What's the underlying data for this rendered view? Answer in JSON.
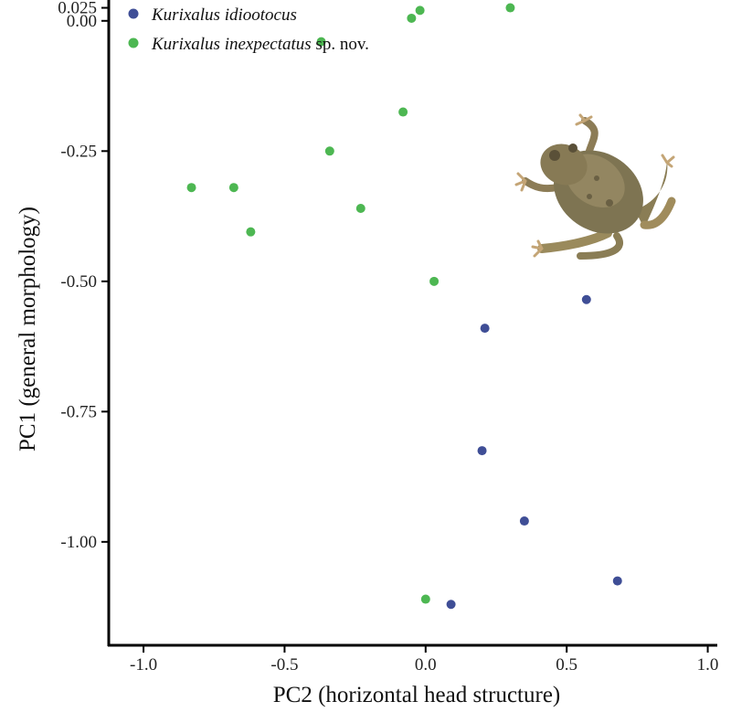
{
  "chart_data": {
    "type": "scatter",
    "title": "",
    "xlabel": "PC2 (horizontal head structure)",
    "ylabel": "PC1 (general morphology)",
    "xlim": [
      -1.12,
      1.05
    ],
    "ylim": [
      -1.195,
      0.04
    ],
    "x_ticks": [
      -1.0,
      -0.5,
      0.0,
      0.5,
      1.0
    ],
    "x_tick_labels": [
      "-1.0",
      "-0.5",
      "0.0",
      "0.5",
      "1.0"
    ],
    "y_ticks": [
      0.025,
      0.0,
      -0.25,
      -0.5,
      -0.75,
      -1.0
    ],
    "y_tick_labels": [
      "0.025",
      "0.00",
      "-0.25",
      "-0.50",
      "-0.75",
      "-1.00"
    ],
    "legend_position": "top-left",
    "series": [
      {
        "name": "Kurixalus idiootocus",
        "name_italic": "Kurixalus idiootocus",
        "name_suffix": "",
        "color": "#3F4E96",
        "points": [
          {
            "x": 0.57,
            "y": -0.535
          },
          {
            "x": 0.21,
            "y": -0.59
          },
          {
            "x": 0.2,
            "y": -0.825
          },
          {
            "x": 0.35,
            "y": -0.96
          },
          {
            "x": 0.68,
            "y": -1.075
          },
          {
            "x": 0.09,
            "y": -1.12
          }
        ]
      },
      {
        "name": "Kurixalus inexpectatus sp. nov.",
        "name_italic": "Kurixalus inexpectatus",
        "name_suffix": " sp. nov.",
        "color": "#4DB752",
        "points": [
          {
            "x": 0.3,
            "y": 0.025
          },
          {
            "x": -0.02,
            "y": 0.02
          },
          {
            "x": -0.05,
            "y": 0.005
          },
          {
            "x": -0.37,
            "y": -0.04
          },
          {
            "x": -0.08,
            "y": -0.175
          },
          {
            "x": -0.34,
            "y": -0.25
          },
          {
            "x": -0.83,
            "y": -0.32
          },
          {
            "x": -0.68,
            "y": -0.32
          },
          {
            "x": -0.23,
            "y": -0.36
          },
          {
            "x": -0.62,
            "y": -0.405
          },
          {
            "x": 0.03,
            "y": -0.5
          },
          {
            "x": 0.0,
            "y": -1.11
          }
        ]
      }
    ]
  },
  "illustration": {
    "subject": "tree frog photo",
    "icon": "frog-icon"
  }
}
